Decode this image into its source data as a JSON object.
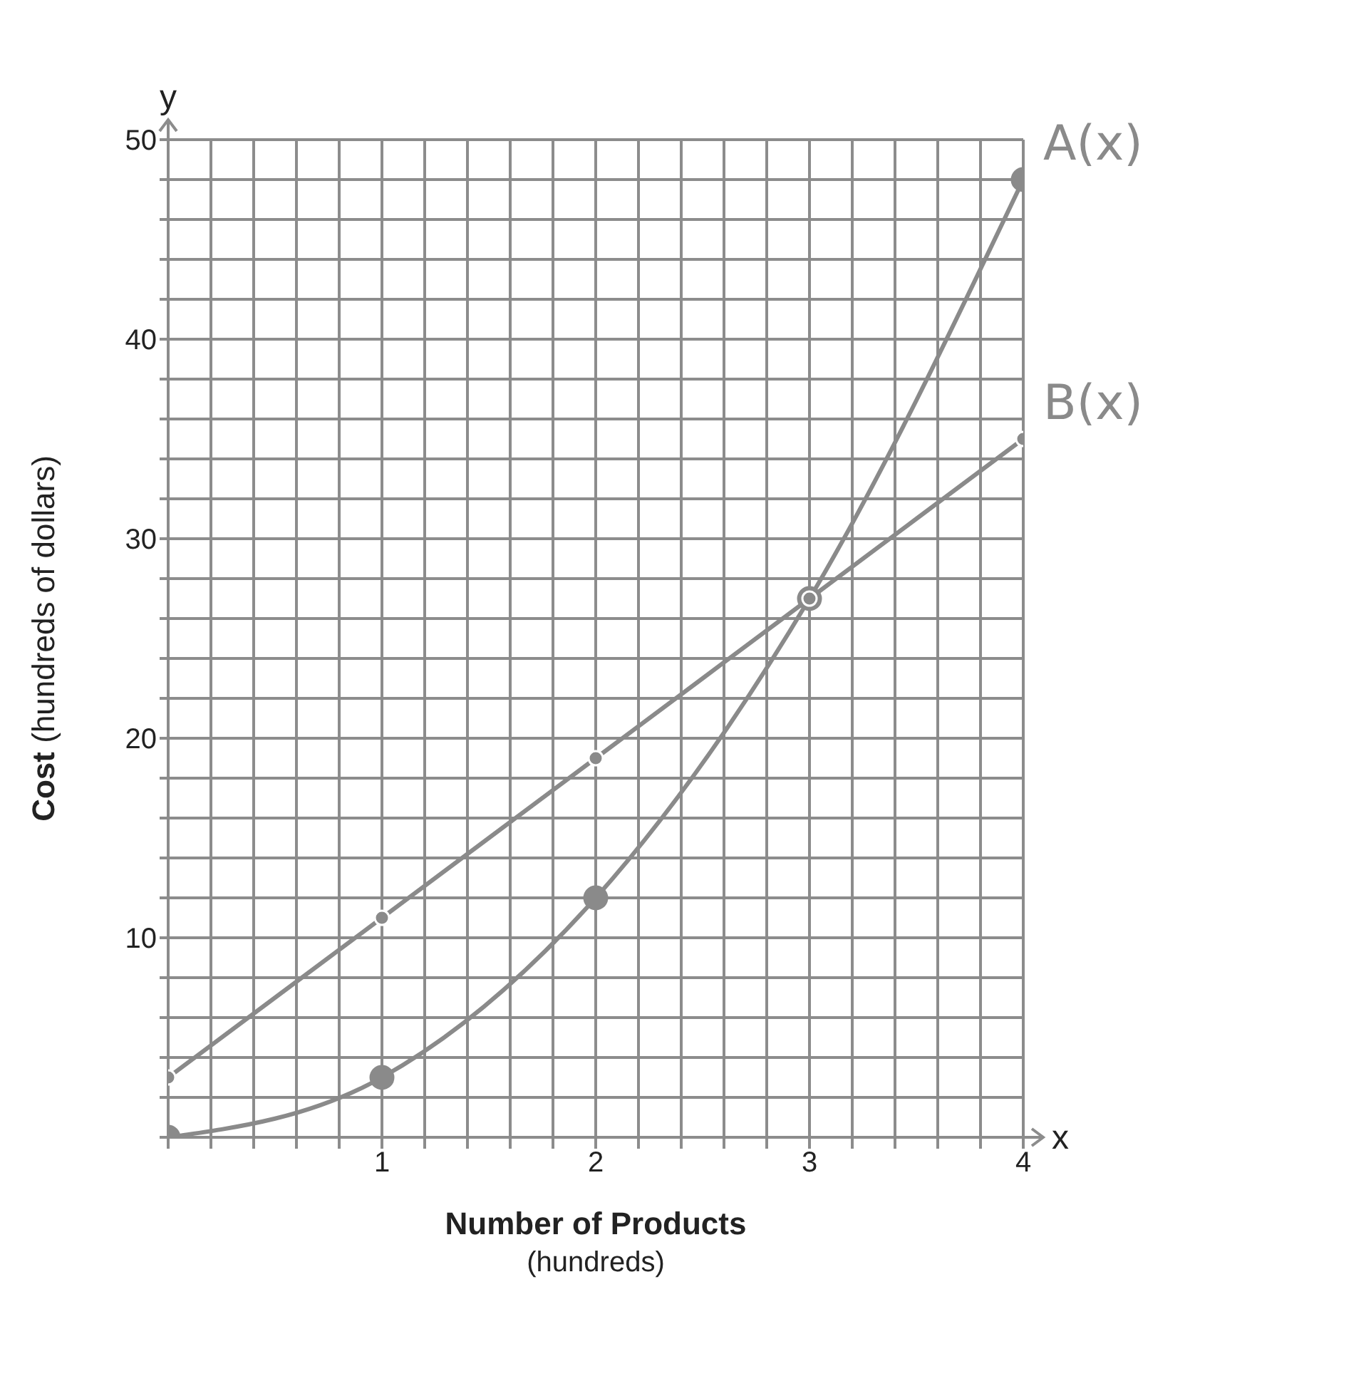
{
  "chart_data": {
    "type": "line",
    "xlabel": "Number of Products (hundreds)",
    "ylabel": "Cost (hundreds of dollars)",
    "annotations": [
      "x",
      "y"
    ],
    "x": [
      0,
      1,
      2,
      3,
      4
    ],
    "series": [
      {
        "name": "A(x)",
        "color": "#8a8a8a",
        "values": [
          0,
          3,
          12,
          27,
          48
        ]
      },
      {
        "name": "B(x)",
        "color": "#8a8a8a",
        "values": [
          3,
          11,
          19,
          27,
          35
        ]
      }
    ],
    "xlim": [
      0,
      4
    ],
    "xticks": [
      {
        "value": 0,
        "label": null
      },
      {
        "value": 0.2,
        "label": null
      },
      {
        "value": 0.4,
        "label": null
      },
      {
        "value": 0.6,
        "label": null
      },
      {
        "value": 0.8,
        "label": null
      },
      1,
      {
        "value": 1.2,
        "label": null
      },
      {
        "value": 1.4,
        "label": null
      },
      {
        "value": 1.6,
        "label": null
      },
      {
        "value": 1.8,
        "label": null
      },
      2,
      {
        "value": 2.2,
        "label": null
      },
      {
        "value": 2.4,
        "label": null
      },
      {
        "value": 2.6,
        "label": null
      },
      {
        "value": 2.8,
        "label": null
      },
      3,
      {
        "value": 3.2,
        "label": null
      },
      {
        "value": 3.4,
        "label": null
      },
      {
        "value": 3.6,
        "label": null
      },
      {
        "value": 3.8,
        "label": null
      },
      4
    ],
    "ylim": [
      0,
      50
    ],
    "yticks": [
      {
        "value": 0,
        "label": null
      },
      {
        "value": 2,
        "label": null
      },
      {
        "value": 4,
        "label": null
      },
      {
        "value": 6,
        "label": null
      },
      {
        "value": 8,
        "label": null
      },
      10,
      {
        "value": 12,
        "label": null
      },
      {
        "value": 14,
        "label": null
      },
      {
        "value": 16,
        "label": null
      },
      {
        "value": 18,
        "label": null
      },
      20,
      {
        "value": 22,
        "label": null
      },
      {
        "value": 24,
        "label": null
      },
      {
        "value": 26,
        "label": null
      },
      {
        "value": 28,
        "label": null
      },
      30,
      {
        "value": 32,
        "label": null
      },
      {
        "value": 34,
        "label": null
      },
      {
        "value": 36,
        "label": null
      },
      {
        "value": 38,
        "label": null
      },
      40,
      {
        "value": 42,
        "label": null
      },
      {
        "value": 44,
        "label": null
      },
      {
        "value": 46,
        "label": null
      },
      {
        "value": 48,
        "label": null
      },
      50
    ],
    "grid": true,
    "legend": false,
    "marker": "circle",
    "line_style": "solid"
  }
}
